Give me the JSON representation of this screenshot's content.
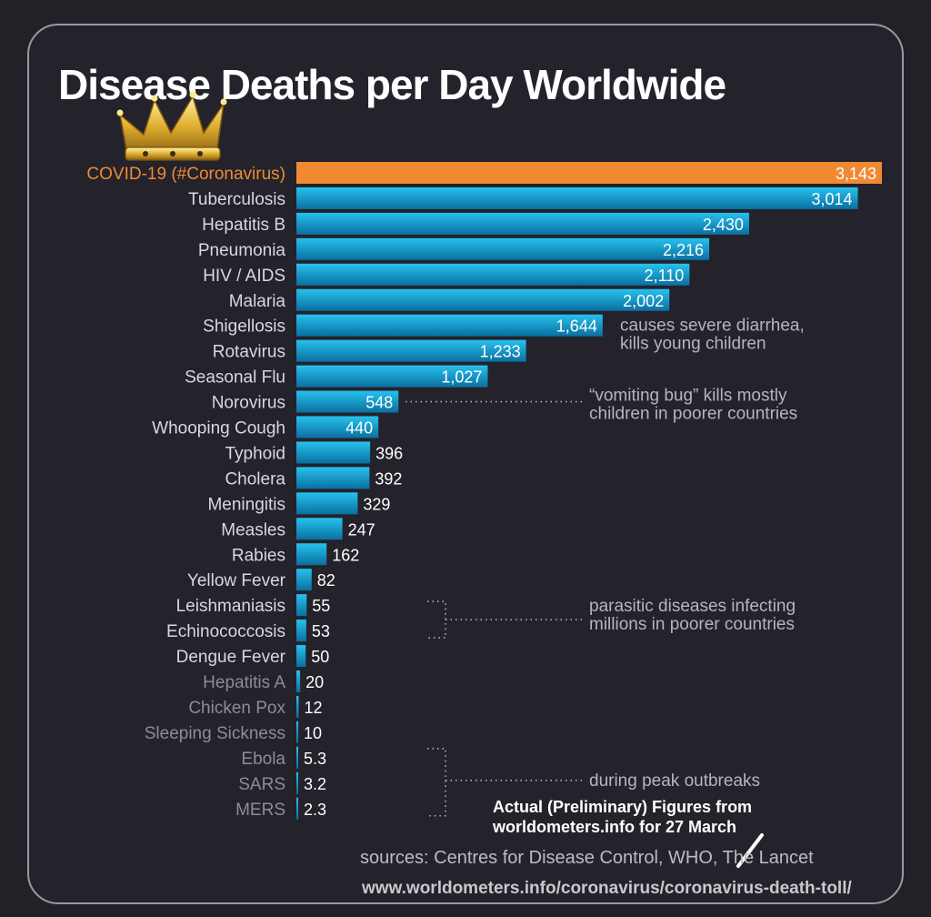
{
  "title": "Disease Deaths per Day Worldwide",
  "colors": {
    "background": "#232128",
    "highlight_bar": "#ef8a33",
    "bar_light": "#22b7e6",
    "bar_dark": "#0d77a8",
    "label_bright": "#d9d8dc",
    "label_dim": "#8e8d93",
    "annotation": "#b6b5bb"
  },
  "icons": {
    "crown": "crown-icon",
    "strike": "slash-mark"
  },
  "chart_data": {
    "type": "bar",
    "orientation": "horizontal",
    "title": "Disease Deaths per Day Worldwide",
    "categories": [
      "COVID-19 (#Coronavirus)",
      "Tuberculosis",
      "Hepatitis B",
      "Pneumonia",
      "HIV / AIDS",
      "Malaria",
      "Shigellosis",
      "Rotavirus",
      "Seasonal Flu",
      "Norovirus",
      "Whooping Cough",
      "Typhoid",
      "Cholera",
      "Meningitis",
      "Measles",
      "Rabies",
      "Yellow Fever",
      "Leishmaniasis",
      "Echinococcosis",
      "Dengue Fever",
      "Hepatitis A",
      "Chicken Pox",
      "Sleeping Sickness",
      "Ebola",
      "SARS",
      "MERS"
    ],
    "values": [
      3143,
      3014,
      2430,
      2216,
      2110,
      2002,
      1644,
      1233,
      1027,
      548,
      440,
      396,
      392,
      329,
      247,
      162,
      82,
      55,
      53,
      50,
      20,
      12,
      10,
      5.3,
      3.2,
      2.3
    ],
    "value_labels": [
      "3,143",
      "3,014",
      "2,430",
      "2,216",
      "2,110",
      "2,002",
      "1,644",
      "1,233",
      "1,027",
      "548",
      "440",
      "396",
      "392",
      "329",
      "247",
      "162",
      "82",
      "55",
      "53",
      "50",
      "20",
      "12",
      "10",
      "5.3",
      "3.2",
      "2.3"
    ],
    "highlight": "COVID-19 (#Coronavirus)",
    "xlim": [
      0,
      3143
    ],
    "grid": false,
    "legend": "none",
    "annotations": [
      {
        "target": "Shigellosis",
        "lines": [
          "causes severe diarrhea,",
          "kills young children"
        ]
      },
      {
        "target": "Norovirus",
        "lines": [
          "“vomiting bug” kills mostly",
          "children in poorer countries"
        ]
      },
      {
        "target": [
          "Leishmaniasis",
          "Echinococcosis"
        ],
        "lines": [
          "parasitic diseases infecting",
          "millions in poorer countries"
        ]
      },
      {
        "target": [
          "Ebola",
          "SARS",
          "MERS"
        ],
        "lines": [
          "during peak outbreaks"
        ]
      }
    ]
  },
  "sources": {
    "note_line1": "Actual (Preliminary) Figures from",
    "note_line2": "worldometers.info for 27 March",
    "line": "sources: Centres for Disease Control, WHO, The Lancet",
    "url": "www.worldometers.info/coronavirus/coronavirus-death-toll/"
  }
}
